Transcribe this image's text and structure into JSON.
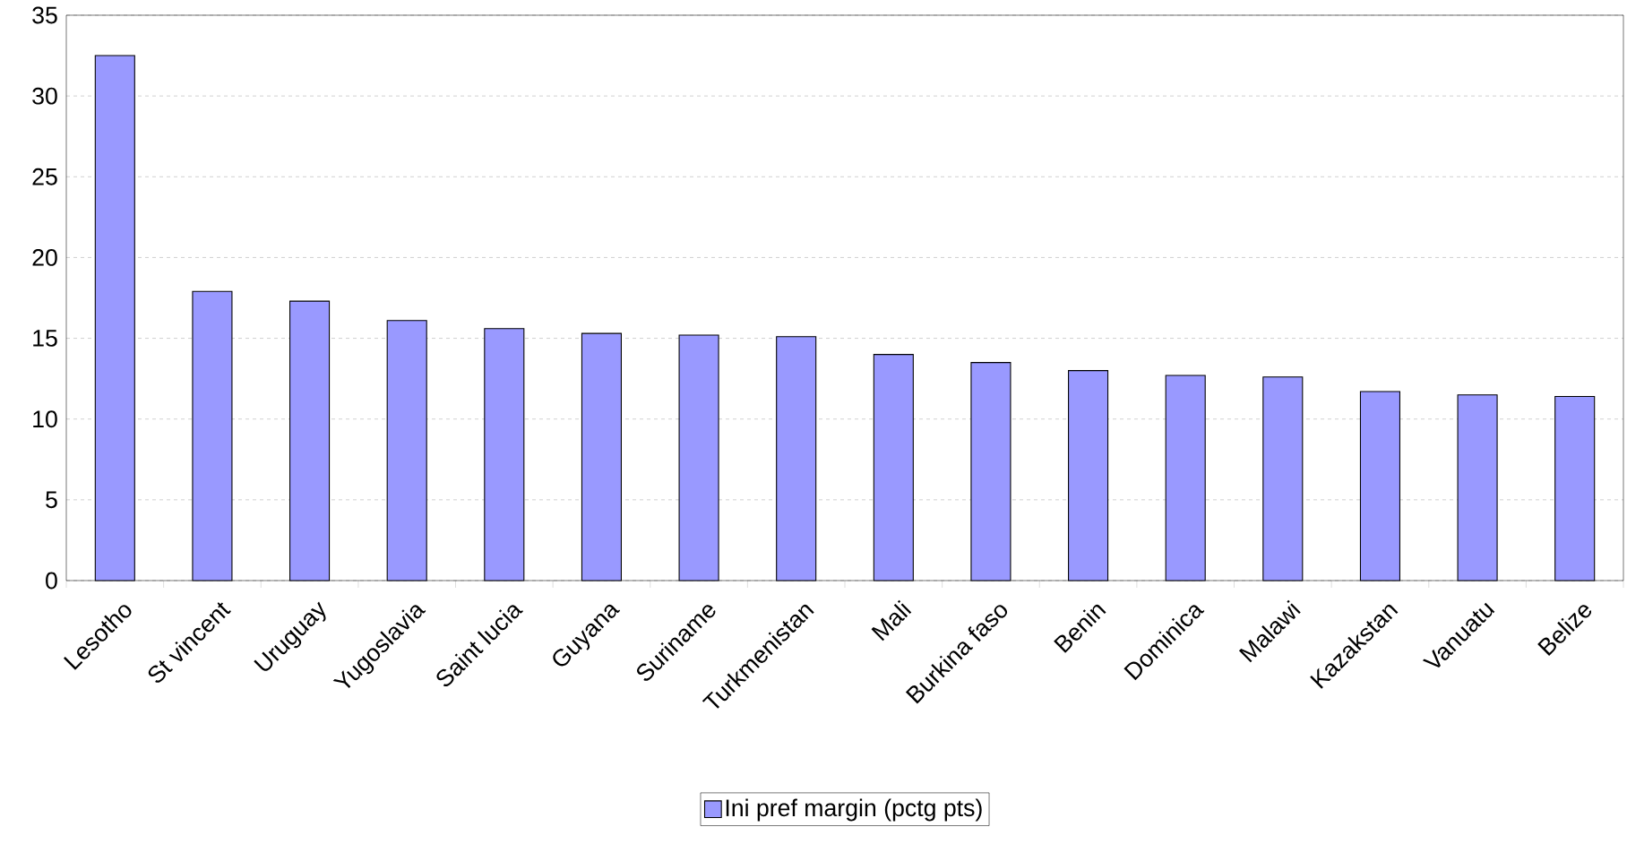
{
  "chart_data": {
    "type": "bar",
    "categories": [
      "Lesotho",
      "St vincent",
      "Uruguay",
      "Yugoslavia",
      "Saint lucia",
      "Guyana",
      "Suriname",
      "Turkmenistan",
      "Mali",
      "Burkina faso",
      "Benin",
      "Dominica",
      "Malawi",
      "Kazakstan",
      "Vanuatu",
      "Belize"
    ],
    "series": [
      {
        "name": "Ini pref margin (pctg pts)",
        "color": "#9999ff",
        "values": [
          32.5,
          17.9,
          17.3,
          16.1,
          15.6,
          15.3,
          15.2,
          15.1,
          14.0,
          13.5,
          13.0,
          12.7,
          12.6,
          11.7,
          11.5,
          11.4
        ]
      }
    ],
    "ylim": [
      0,
      35
    ],
    "yticks": [
      0,
      5,
      10,
      15,
      20,
      25,
      30,
      35
    ],
    "grid": "y",
    "legend": "bottom"
  }
}
